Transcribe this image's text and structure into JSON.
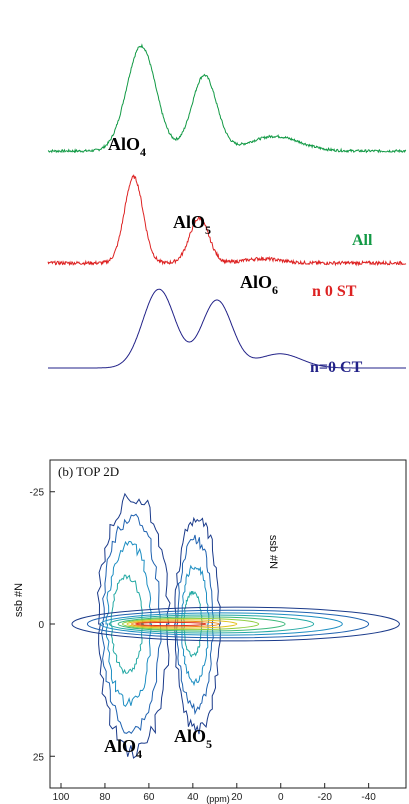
{
  "colors": {
    "all": "#119944",
    "st": "#dd2222",
    "ct": "#222288",
    "ink": "#111111",
    "contours": [
      "#1a3a8a",
      "#1f62b0",
      "#1d8ec2",
      "#23a9a4",
      "#3cb87a",
      "#8fcc3d",
      "#e3c21f",
      "#ee8a1a",
      "#e0331a"
    ]
  },
  "chart_data": [
    {
      "type": "line",
      "panel": "1D spectra",
      "series": [
        {
          "name": "All",
          "color": "#119944",
          "offset": 0.62,
          "scale": 1.0,
          "peaks": [
            [
              63,
              1.0,
              8.2
            ],
            [
              38,
              0.72,
              7.0
            ],
            [
              10,
              0.14,
              14
            ]
          ],
          "noise": 0.012
        },
        {
          "name": "n  0 ST",
          "color": "#dd2222",
          "offset": 0.3,
          "scale": 0.82,
          "peaks": [
            [
              66,
              1.0,
              5.2
            ],
            [
              40,
              0.52,
              5.4
            ],
            [
              15,
              0.05,
              10
            ]
          ],
          "noise": 0.016
        },
        {
          "name": "n=0 CT",
          "color": "#222288",
          "offset": 0.0,
          "scale": 0.75,
          "peaks": [
            [
              56,
              1.0,
              9.0
            ],
            [
              33,
              0.86,
              8.5
            ],
            [
              8,
              0.18,
              12
            ]
          ],
          "noise": 0.0
        }
      ],
      "annotations": [
        {
          "text": "AlO",
          "sub": "4"
        },
        {
          "text": "AlO",
          "sub": "5"
        },
        {
          "text": "AlO",
          "sub": "6"
        }
      ]
    },
    {
      "type": "contour",
      "title": "(b) TOP 2D",
      "xlabel": "(ppm)",
      "ylabel": "ssb #N",
      "inner_label": "ssb #N",
      "xlim": [
        105,
        -57
      ],
      "ylim": [
        -31,
        31
      ],
      "x_ticks": [
        100,
        80,
        60,
        40,
        20,
        0,
        -20,
        -40
      ],
      "y_ticks": [
        -25,
        0,
        25
      ],
      "annotations": [
        {
          "text": "AlO",
          "sub": "4"
        },
        {
          "text": "AlO",
          "sub": "5"
        }
      ]
    }
  ],
  "labels": {
    "alo4_top": {
      "text": "AlO",
      "sub": "4"
    },
    "alo5_top": {
      "text": "AlO",
      "sub": "5"
    },
    "alo6_top": {
      "text": "AlO",
      "sub": "6"
    },
    "trace_all": "All",
    "trace_st": "n  0 ST",
    "trace_ct": "n=0 CT",
    "panel_title": "(b) TOP 2D",
    "ylabel": "ssb #N",
    "inner_ylabel": "ssb #N",
    "xlabel": "(ppm)",
    "alo4_bottom": {
      "text": "AlO",
      "sub": "4"
    },
    "alo5_bottom": {
      "text": "AlO",
      "sub": "5"
    },
    "x_ticks": [
      "100",
      "80",
      "60",
      "40",
      "20",
      "0",
      "-20",
      "-40"
    ],
    "y_ticks": [
      "-25",
      "0",
      "25"
    ]
  }
}
